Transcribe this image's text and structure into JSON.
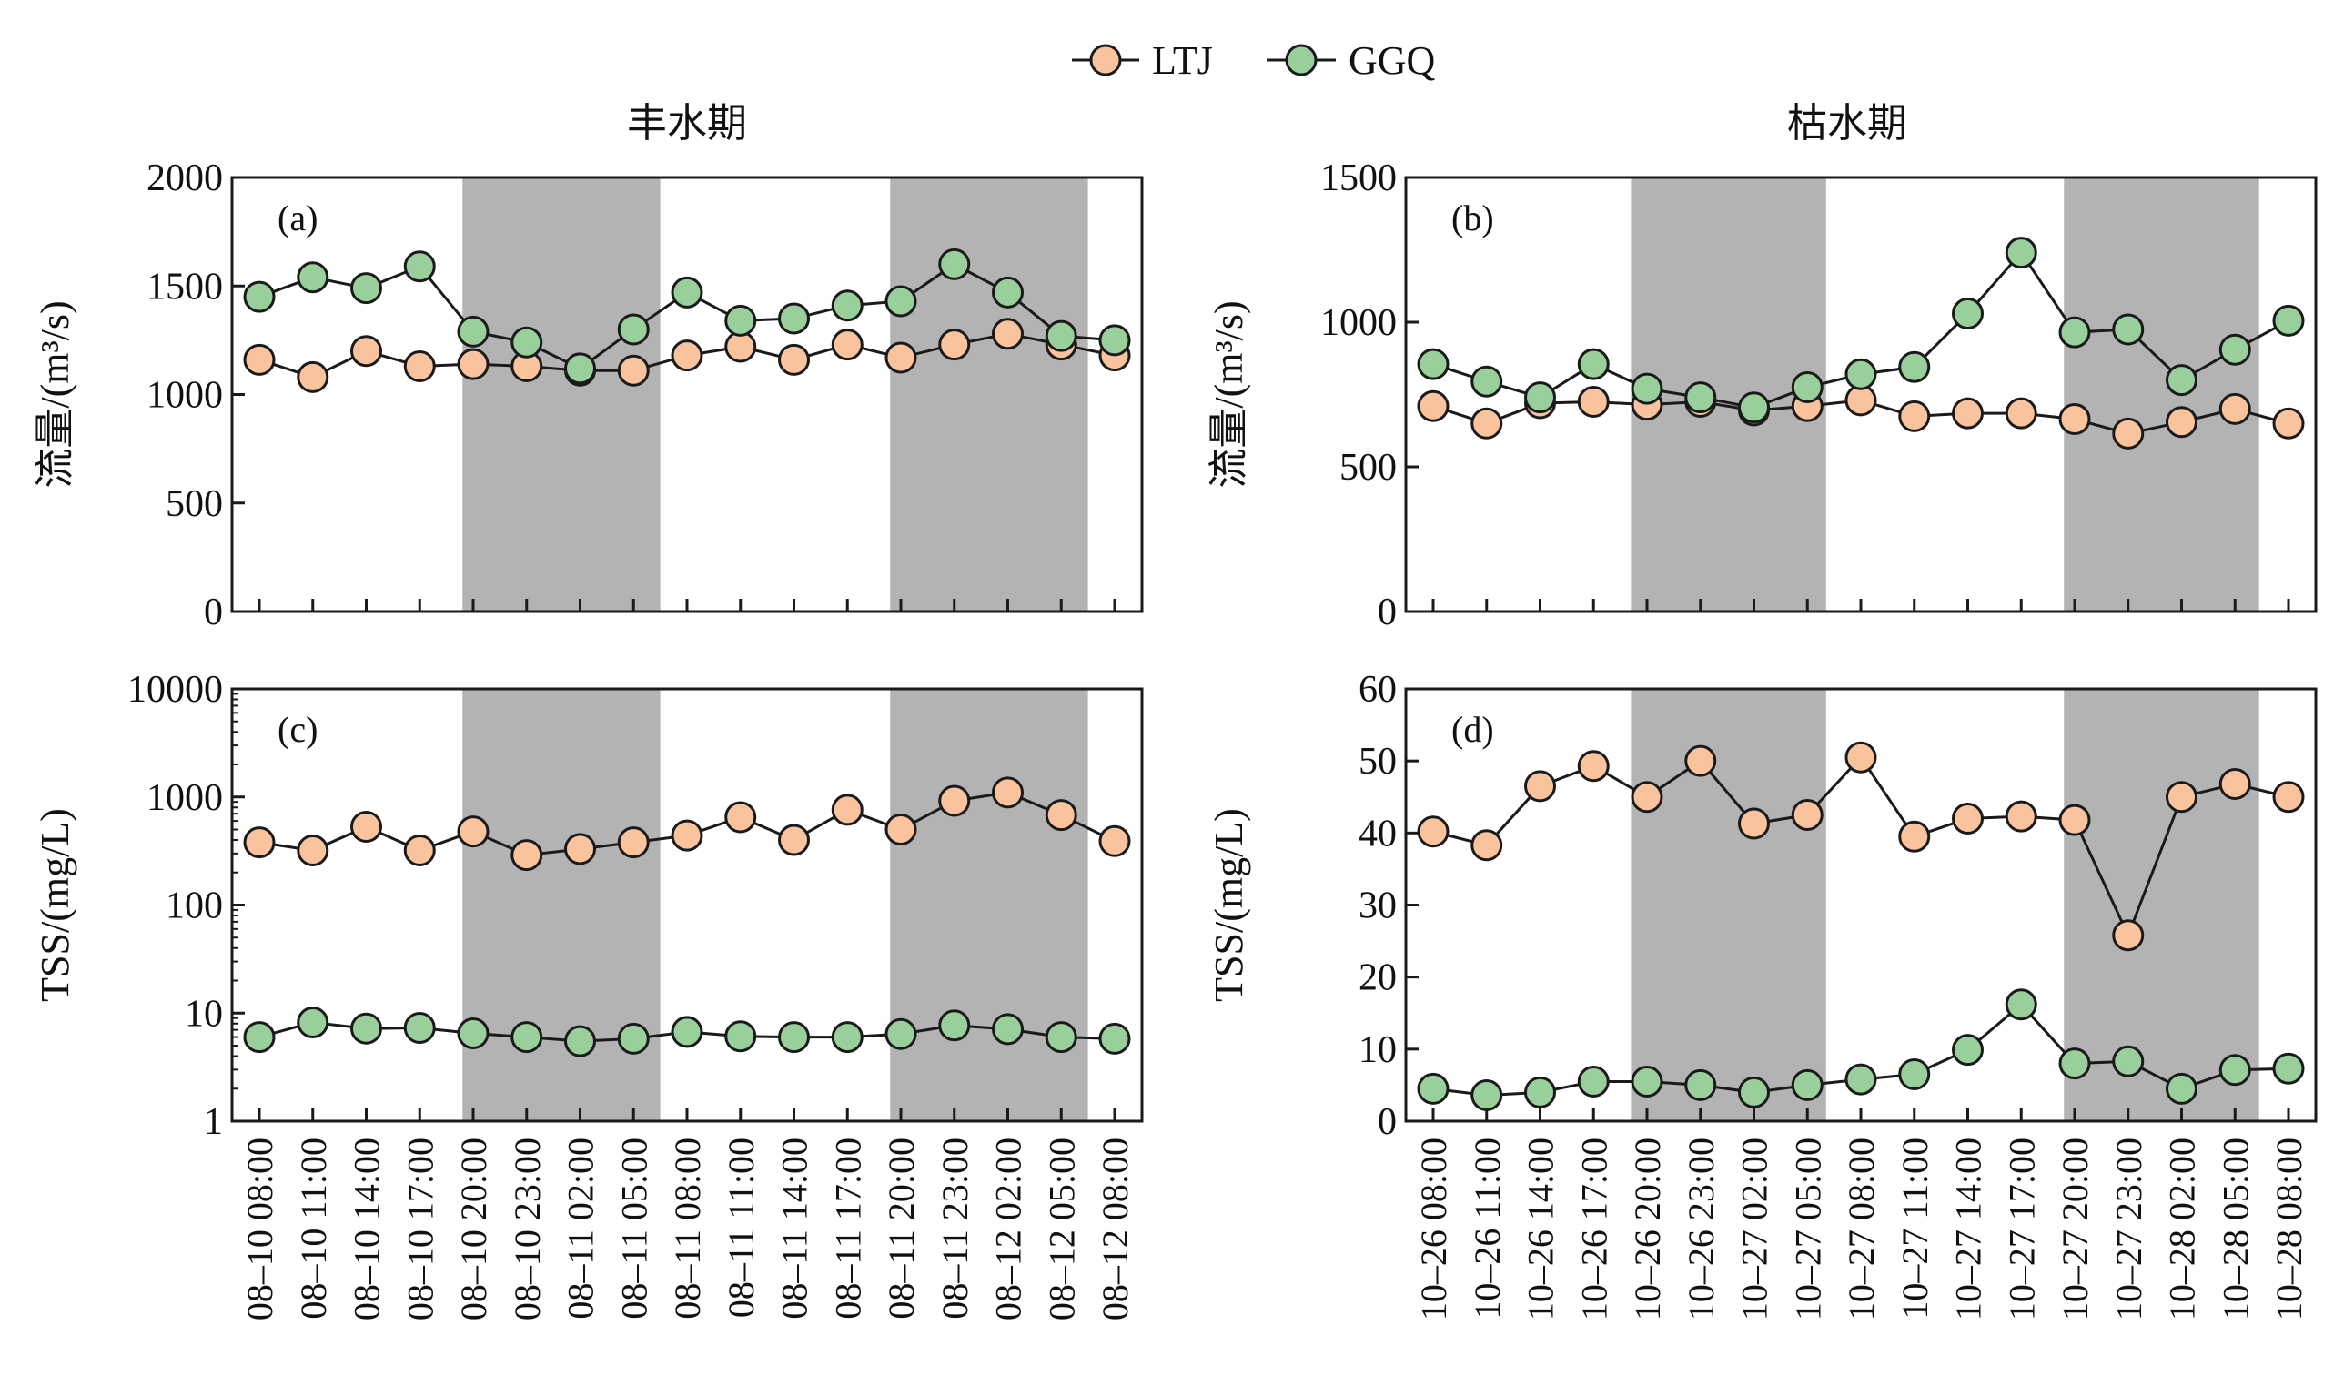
{
  "colors": {
    "LTJ": "#f9c39d",
    "GGQ": "#98cf9a",
    "shade": "#b3b3b3",
    "line": "#1a1a1a"
  },
  "legend": [
    {
      "name": "LTJ"
    },
    {
      "name": "GGQ"
    }
  ],
  "titles": {
    "left": "丰水期",
    "right": "枯水期"
  },
  "chart_data": [
    {
      "id": "a",
      "panel_label": "(a)",
      "type": "line",
      "column": "left",
      "ylabel": "流量/(m³/s)",
      "yscale": "linear",
      "ylim": [
        0,
        2000
      ],
      "yticks": [
        "0",
        "500",
        "1000",
        "1500",
        "2000"
      ],
      "shade_ranges": [
        [
          3.8,
          7.5
        ],
        [
          11.8,
          15.5
        ]
      ],
      "categories": [
        "08–10 08:00",
        "08–10 11:00",
        "08–10 14:00",
        "08–10 17:00",
        "08–10 20:00",
        "08–10 23:00",
        "08–11 02:00",
        "08–11 05:00",
        "08–11 08:00",
        "08–11 11:00",
        "08–11 14:00",
        "08–11 17:00",
        "08–11 20:00",
        "08–11 23:00",
        "08–12 02:00",
        "08–12 05:00",
        "08–12 08:00"
      ],
      "series": [
        {
          "name": "LTJ",
          "values": [
            1160,
            1080,
            1200,
            1130,
            1140,
            1130,
            1110,
            1110,
            1180,
            1220,
            1160,
            1230,
            1170,
            1230,
            1280,
            1230,
            1180
          ]
        },
        {
          "name": "GGQ",
          "values": [
            1450,
            1540,
            1490,
            1590,
            1290,
            1240,
            1120,
            1300,
            1470,
            1340,
            1350,
            1410,
            1430,
            1600,
            1470,
            1270,
            1250
          ]
        }
      ]
    },
    {
      "id": "b",
      "panel_label": "(b)",
      "type": "line",
      "column": "right",
      "ylabel": "流量/(m³/s)",
      "yscale": "linear",
      "ylim": [
        0,
        1500
      ],
      "yticks": [
        "0",
        "500",
        "1000",
        "1500"
      ],
      "shade_ranges": [
        [
          3.7,
          7.35
        ],
        [
          11.8,
          15.45
        ]
      ],
      "categories": [
        "10–26 08:00",
        "10–26 11:00",
        "10–26 14:00",
        "10–26 17:00",
        "10–26 20:00",
        "10–26 23:00",
        "10–27 02:00",
        "10–27 05:00",
        "10–27 08:00",
        "10–27 11:00",
        "10–27 14:00",
        "10–27 17:00",
        "10–27 20:00",
        "10–27 23:00",
        "10–28 02:00",
        "10–28 05:00",
        "10–28 08:00"
      ],
      "series": [
        {
          "name": "LTJ",
          "values": [
            710,
            650,
            720,
            725,
            715,
            725,
            695,
            710,
            730,
            675,
            685,
            685,
            665,
            615,
            655,
            700,
            650
          ]
        },
        {
          "name": "GGQ",
          "values": [
            855,
            795,
            740,
            855,
            770,
            740,
            705,
            775,
            820,
            845,
            1030,
            1240,
            965,
            975,
            800,
            905,
            1005
          ]
        }
      ]
    },
    {
      "id": "c",
      "panel_label": "(c)",
      "type": "line",
      "column": "left",
      "ylabel": "TSS/(mg/L)",
      "yscale": "log",
      "ylim": [
        1,
        10000
      ],
      "yticks": [
        "1",
        "10",
        "100",
        "1000",
        "10000"
      ],
      "shade_ranges": [
        [
          3.8,
          7.5
        ],
        [
          11.8,
          15.5
        ]
      ],
      "categories": [
        "08–10 08:00",
        "08–10 11:00",
        "08–10 14:00",
        "08–10 17:00",
        "08–10 20:00",
        "08–10 23:00",
        "08–11 02:00",
        "08–11 05:00",
        "08–11 08:00",
        "08–11 11:00",
        "08–11 14:00",
        "08–11 17:00",
        "08–11 20:00",
        "08–11 23:00",
        "08–12 02:00",
        "08–12 05:00",
        "08–12 08:00"
      ],
      "series": [
        {
          "name": "LTJ",
          "values": [
            380,
            320,
            530,
            320,
            480,
            290,
            330,
            380,
            440,
            650,
            400,
            760,
            500,
            920,
            1100,
            680,
            390
          ]
        },
        {
          "name": "GGQ",
          "values": [
            6.0,
            8.2,
            7.2,
            7.3,
            6.5,
            6.0,
            5.5,
            5.8,
            6.7,
            6.1,
            6.0,
            6.0,
            6.4,
            7.7,
            7.1,
            6.0,
            5.8
          ]
        }
      ]
    },
    {
      "id": "d",
      "panel_label": "(d)",
      "type": "line",
      "column": "right",
      "ylabel": "TSS/(mg/L)",
      "yscale": "linear",
      "ylim": [
        0,
        60
      ],
      "yticks": [
        "0",
        "10",
        "20",
        "30",
        "40",
        "50",
        "60"
      ],
      "shade_ranges": [
        [
          3.7,
          7.35
        ],
        [
          11.8,
          15.45
        ]
      ],
      "categories": [
        "10–26 08:00",
        "10–26 11:00",
        "10–26 14:00",
        "10–26 17:00",
        "10–26 20:00",
        "10–26 23:00",
        "10–27 02:00",
        "10–27 05:00",
        "10–27 08:00",
        "10–27 11:00",
        "10–27 14:00",
        "10–27 17:00",
        "10–27 20:00",
        "10–27 23:00",
        "10–28 02:00",
        "10–28 05:00",
        "10–28 08:00"
      ],
      "series": [
        {
          "name": "LTJ",
          "values": [
            40.2,
            38.3,
            46.5,
            49.3,
            45.0,
            50.0,
            41.3,
            42.5,
            50.5,
            39.5,
            42.0,
            42.3,
            41.8,
            25.8,
            45.0,
            46.8,
            45.0
          ]
        },
        {
          "name": "GGQ",
          "values": [
            4.5,
            3.6,
            4.0,
            5.5,
            5.5,
            5.0,
            4.0,
            5.0,
            5.8,
            6.5,
            9.9,
            16.2,
            8.0,
            8.3,
            4.5,
            7.1,
            7.3
          ]
        }
      ]
    }
  ]
}
